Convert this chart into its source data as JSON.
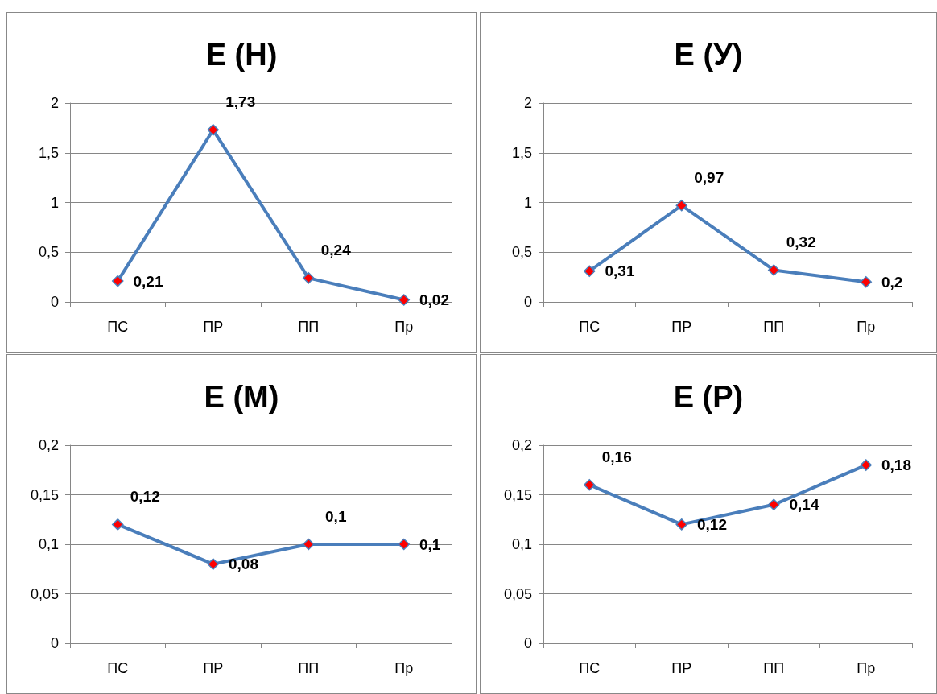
{
  "chart_data": [
    {
      "type": "line",
      "title": "E (Н)",
      "categories": [
        "ПС",
        "ПР",
        "ПП",
        "Пр"
      ],
      "series": [
        {
          "color": "#4a7ebb",
          "colors": [
            "#ff0000",
            "#ff0000",
            "#ff0000",
            "#ff0000"
          ],
          "values": [
            0.21,
            1.73,
            0.24,
            0.02
          ],
          "value_labels": [
            "0,21",
            "1,73",
            "0,24",
            "0,02"
          ]
        }
      ],
      "ylim": [
        0,
        2
      ],
      "yticks": [
        0,
        {
          "value": 0.5,
          "label": "0,5"
        },
        1,
        {
          "value": 1.5,
          "label": "1,5"
        },
        2
      ],
      "grid": "y",
      "marker": "diamond",
      "line_style": "solid"
    },
    {
      "type": "line",
      "title": "E (У)",
      "categories": [
        "ПС",
        "ПР",
        "ПП",
        "Пр"
      ],
      "series": [
        {
          "color": "#4a7ebb",
          "colors": [
            "#ff0000",
            "#ff0000",
            "#ff0000",
            "#ff0000"
          ],
          "values": [
            0.31,
            0.97,
            0.32,
            0.2
          ],
          "value_labels": [
            "0,31",
            "0,97",
            "0,32",
            "0,2"
          ]
        }
      ],
      "ylim": [
        0,
        2
      ],
      "yticks": [
        0,
        {
          "value": 0.5,
          "label": "0,5"
        },
        1,
        {
          "value": 1.5,
          "label": "1,5"
        },
        2
      ],
      "grid": "y",
      "marker": "diamond",
      "line_style": "solid"
    },
    {
      "type": "line",
      "title": "E (М)",
      "categories": [
        "ПС",
        "ПР",
        "ПП",
        "Пр"
      ],
      "series": [
        {
          "color": "#4a7ebb",
          "colors": [
            "#ff0000",
            "#ff0000",
            "#ff0000",
            "#ff0000"
          ],
          "values": [
            0.12,
            0.08,
            0.1,
            0.1
          ],
          "value_labels": [
            "0,12",
            "0,08",
            "0,1",
            "0,1"
          ]
        }
      ],
      "ylim": [
        0,
        0.2
      ],
      "yticks": [
        0,
        {
          "value": 0.05,
          "label": "0,05"
        },
        {
          "value": 0.1,
          "label": "0,1"
        },
        {
          "value": 0.15,
          "label": "0,15"
        },
        {
          "value": 0.2,
          "label": "0,2"
        }
      ],
      "grid": "y",
      "marker": "diamond",
      "line_style": "solid"
    },
    {
      "type": "line",
      "title": "E (Р)",
      "categories": [
        "ПС",
        "ПР",
        "ПП",
        "Пр"
      ],
      "series": [
        {
          "color": "#4a7ebb",
          "colors": [
            "#ff0000",
            "#ff0000",
            "#ff0000",
            "#ff0000"
          ],
          "values": [
            0.16,
            0.12,
            0.14,
            0.18
          ],
          "value_labels": [
            "0,16",
            "0,12",
            "0,14",
            "0,18"
          ]
        }
      ],
      "ylim": [
        0,
        0.2
      ],
      "yticks": [
        0,
        {
          "value": 0.05,
          "label": "0,05"
        },
        {
          "value": 0.1,
          "label": "0,1"
        },
        {
          "value": 0.15,
          "label": "0,15"
        },
        {
          "value": 0.2,
          "label": "0,2"
        }
      ],
      "grid": "y",
      "marker": "diamond",
      "line_style": "solid"
    }
  ]
}
